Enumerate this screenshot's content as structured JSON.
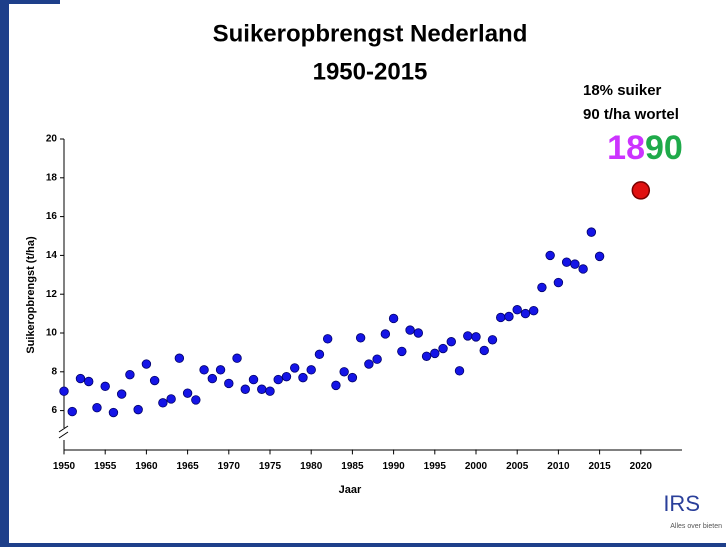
{
  "chart_data": {
    "type": "scatter",
    "title_lines": [
      "Suikeropbrengst Nederland",
      "1950-2015"
    ],
    "x_label": "Jaar",
    "y_label": "Suikeropbrengst (t/ha)",
    "annotations": [
      "18% suiker",
      "90 t/ha wortel"
    ],
    "annotation_number": [
      {
        "text": "18",
        "color": "#cc33ff"
      },
      {
        "text": "90",
        "color": "#1faa4a"
      }
    ],
    "xlim": [
      1950,
      2025
    ],
    "ylim": [
      4,
      20
    ],
    "xticks": [
      1950,
      1955,
      1960,
      1965,
      1970,
      1975,
      1980,
      1985,
      1990,
      1995,
      2000,
      2005,
      2010,
      2015,
      2020
    ],
    "yticks": [
      6,
      8,
      10,
      12,
      14,
      16,
      18,
      20
    ],
    "series": [
      {
        "color": "#1414e6",
        "x": [
          1950,
          1951,
          1952,
          1953,
          1954,
          1955,
          1956,
          1957,
          1958,
          1959,
          1960,
          1961,
          1962,
          1963,
          1964,
          1965,
          1966,
          1967,
          1968,
          1969,
          1970,
          1971,
          1972,
          1973,
          1974,
          1975,
          1976,
          1977,
          1978,
          1979,
          1980,
          1981,
          1982,
          1983,
          1984,
          1985,
          1986,
          1987,
          1988,
          1989,
          1990,
          1991,
          1992,
          1993,
          1994,
          1995,
          1996,
          1997,
          1998,
          1999,
          2000,
          2001,
          2002,
          2003,
          2004,
          2005,
          2006,
          2007,
          2008,
          2009,
          2010,
          2011,
          2012,
          2013,
          2014,
          2015
        ],
        "values": [
          7.0,
          5.95,
          7.65,
          7.5,
          6.15,
          7.25,
          5.9,
          6.85,
          7.85,
          6.05,
          8.4,
          7.55,
          6.4,
          6.6,
          8.7,
          6.9,
          6.55,
          8.1,
          7.65,
          8.1,
          7.4,
          8.7,
          7.1,
          7.6,
          7.1,
          7.0,
          7.6,
          7.75,
          8.2,
          7.7,
          8.1,
          8.9,
          9.7,
          7.3,
          8.0,
          7.7,
          9.75,
          8.4,
          8.65,
          9.95,
          10.75,
          9.05,
          10.15,
          10.0,
          8.8,
          8.95,
          9.2,
          9.55,
          8.05,
          9.85,
          9.8,
          9.1,
          9.65,
          10.8,
          10.85,
          11.2,
          11.0,
          11.15,
          12.35,
          14.0,
          12.6,
          13.65,
          13.55,
          13.3,
          15.2,
          13.95
        ]
      },
      {
        "color": "#e01010",
        "x": [
          2020
        ],
        "values": [
          17.35
        ]
      }
    ],
    "logo": {
      "text": "IRS",
      "tagline": "Alles over bieten"
    }
  }
}
